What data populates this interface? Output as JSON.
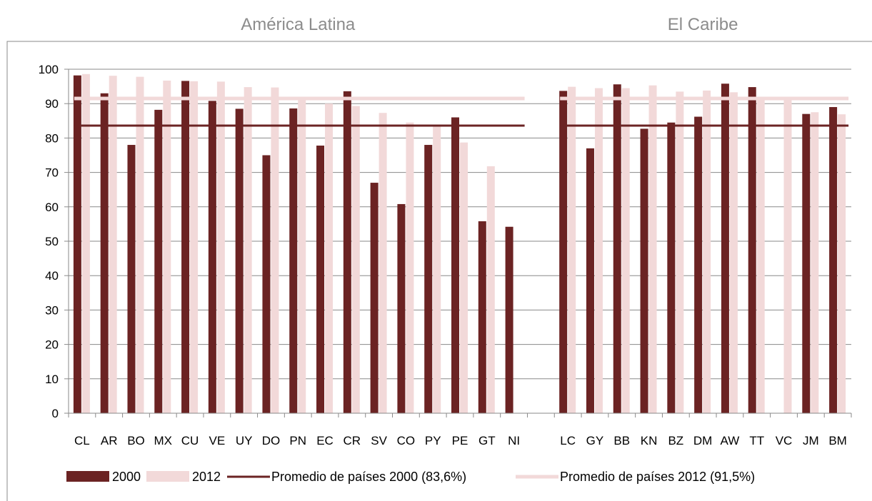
{
  "chart_data": {
    "type": "bar",
    "regions": [
      {
        "label": "América Latina",
        "start": 0,
        "end": 17
      },
      {
        "label": "El Caribe",
        "start": 18,
        "end": 29
      }
    ],
    "categories": [
      "CL",
      "AR",
      "BO",
      "MX",
      "CU",
      "VE",
      "UY",
      "DO",
      "PN",
      "EC",
      "CR",
      "SV",
      "CO",
      "PY",
      "PE",
      "GT",
      "NI",
      "",
      "LC",
      "GY",
      "BB",
      "KN",
      "BZ",
      "DM",
      "AW",
      "TT",
      "VC",
      "JM",
      "BM"
    ],
    "series": [
      {
        "name": "2000",
        "color": "#6b2323",
        "values": [
          98.2,
          93.0,
          78.0,
          88.2,
          96.6,
          90.8,
          88.5,
          75.0,
          88.6,
          77.8,
          93.6,
          67.0,
          60.8,
          78.0,
          86.0,
          55.8,
          54.2,
          null,
          93.7,
          77.0,
          95.6,
          82.7,
          84.5,
          86.2,
          95.8,
          94.8,
          null,
          87.0,
          89.0
        ]
      },
      {
        "name": "2012",
        "color": "#f2d9d9",
        "values": [
          98.6,
          98.1,
          97.8,
          96.7,
          96.5,
          96.4,
          94.8,
          94.7,
          91.8,
          90.0,
          89.3,
          87.3,
          84.5,
          83.5,
          78.7,
          71.8,
          null,
          null,
          94.9,
          94.5,
          94.5,
          95.3,
          93.5,
          93.8,
          93.3,
          91.8,
          91.7,
          87.5,
          86.9
        ]
      }
    ],
    "reference_lines": [
      {
        "name": "Promedio de países 2000 (83,6%)",
        "value": 83.6,
        "color": "#6b2323"
      },
      {
        "name": "Promedio de países 2012 (91,5%)",
        "value": 91.5,
        "color": "#f2d9d9"
      }
    ],
    "ylim": [
      0,
      100
    ],
    "yticks": [
      0,
      10,
      20,
      30,
      40,
      50,
      60,
      70,
      80,
      90,
      100
    ],
    "grid": true,
    "legend_position": "bottom",
    "xlabel": "",
    "ylabel": "",
    "title": ""
  }
}
